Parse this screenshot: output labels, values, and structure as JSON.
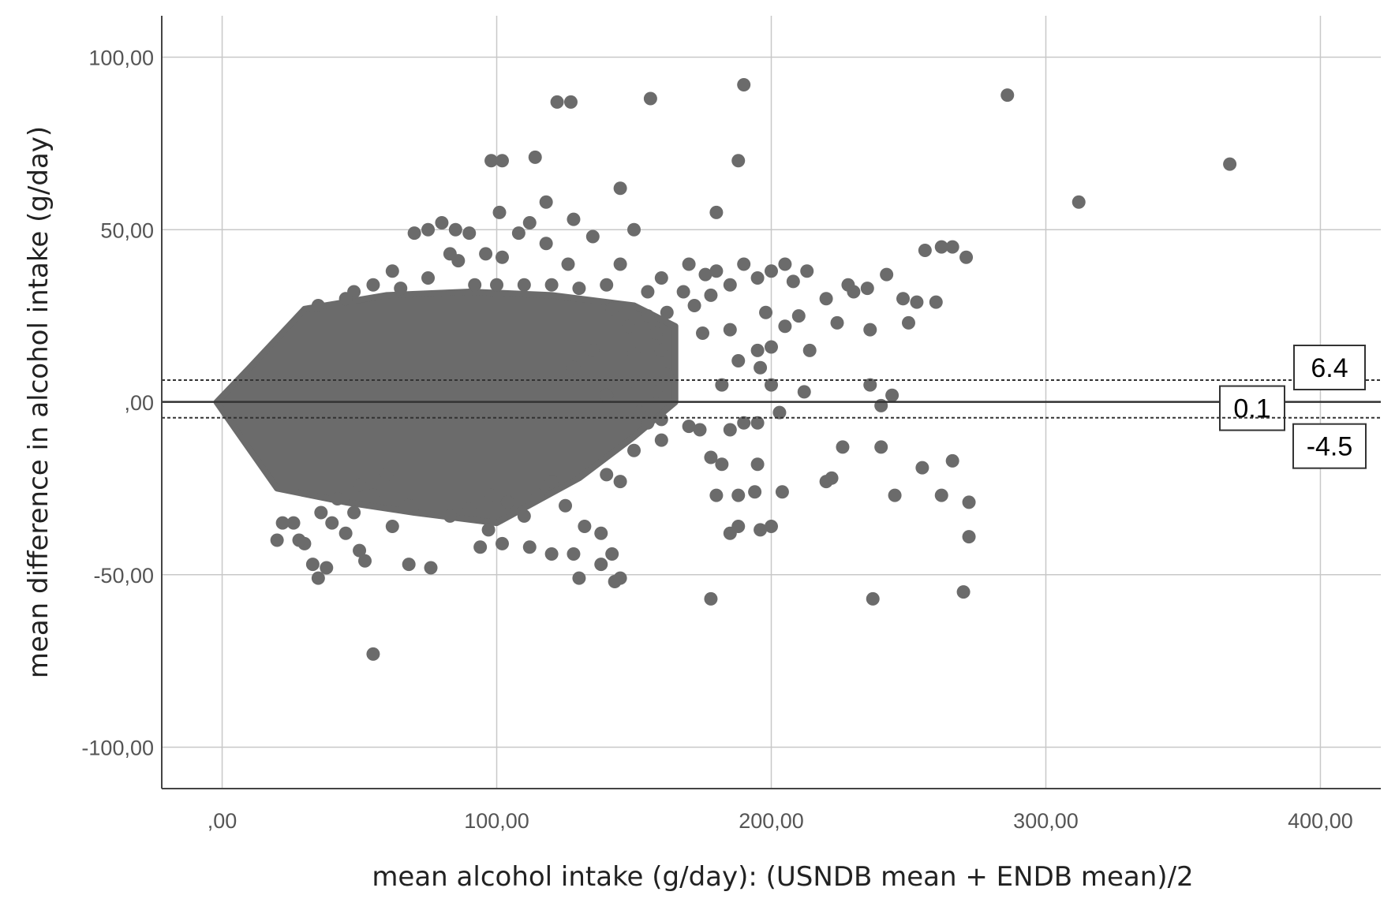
{
  "chart_data": {
    "type": "scatter",
    "title": "",
    "xlabel": "mean alcohol intake (g/day): (USNDB mean + ENDB mean)/2",
    "ylabel": "mean difference in alcohol intake (g/day)",
    "xlim": [
      -22,
      422
    ],
    "ylim": [
      -112,
      112
    ],
    "x_ticks": [
      0,
      100,
      200,
      300,
      400
    ],
    "x_tick_labels": [
      ",00",
      "100,00",
      "200,00",
      "300,00",
      "400,00"
    ],
    "y_ticks": [
      100,
      50,
      0,
      -50,
      -100
    ],
    "y_tick_labels": [
      "100,00",
      "50,00",
      ",00",
      "-50,00",
      "-100,00"
    ],
    "grid": true,
    "marker_color": "#6b6b6b",
    "grid_color": "#c8c8c8",
    "reference_lines": [
      {
        "label": "6.4",
        "value": 6.4,
        "style": "dashed"
      },
      {
        "label": "0.1",
        "value": 0.1,
        "style": "solid"
      },
      {
        "label": "-4.5",
        "value": -4.5,
        "style": "dashed"
      }
    ],
    "dense_region": {
      "description_points_upper": [
        [
          -2,
          0
        ],
        [
          10,
          10
        ],
        [
          30,
          27
        ],
        [
          60,
          31
        ],
        [
          90,
          32
        ],
        [
          120,
          31
        ],
        [
          150,
          28
        ],
        [
          165,
          22
        ],
        [
          165,
          10
        ]
      ],
      "description_points_lower": [
        [
          165,
          0
        ],
        [
          150,
          -10
        ],
        [
          130,
          -22
        ],
        [
          100,
          -35
        ],
        [
          70,
          -32
        ],
        [
          45,
          -29
        ],
        [
          20,
          -25
        ],
        [
          5,
          -8
        ],
        [
          -2,
          0
        ]
      ]
    },
    "points": [
      [
        190,
        92
      ],
      [
        286,
        89
      ],
      [
        156,
        88
      ],
      [
        122,
        87
      ],
      [
        127,
        87
      ],
      [
        367,
        69
      ],
      [
        188,
        70
      ],
      [
        98,
        70
      ],
      [
        102,
        70
      ],
      [
        114,
        71
      ],
      [
        312,
        58
      ],
      [
        145,
        62
      ],
      [
        118,
        58
      ],
      [
        180,
        55
      ],
      [
        128,
        53
      ],
      [
        101,
        55
      ],
      [
        70,
        49
      ],
      [
        75,
        50
      ],
      [
        80,
        52
      ],
      [
        85,
        50
      ],
      [
        90,
        49
      ],
      [
        108,
        49
      ],
      [
        112,
        52
      ],
      [
        135,
        48
      ],
      [
        150,
        50
      ],
      [
        83,
        43
      ],
      [
        86,
        41
      ],
      [
        96,
        43
      ],
      [
        102,
        42
      ],
      [
        118,
        46
      ],
      [
        126,
        40
      ],
      [
        145,
        40
      ],
      [
        160,
        36
      ],
      [
        170,
        40
      ],
      [
        176,
        37
      ],
      [
        180,
        38
      ],
      [
        185,
        34
      ],
      [
        190,
        40
      ],
      [
        195,
        36
      ],
      [
        200,
        38
      ],
      [
        205,
        40
      ],
      [
        213,
        38
      ],
      [
        208,
        35
      ],
      [
        220,
        30
      ],
      [
        230,
        32
      ],
      [
        235,
        33
      ],
      [
        242,
        37
      ],
      [
        248,
        30
      ],
      [
        253,
        29
      ],
      [
        260,
        29
      ],
      [
        256,
        44
      ],
      [
        262,
        45
      ],
      [
        266,
        45
      ],
      [
        271,
        42
      ],
      [
        250,
        23
      ],
      [
        244,
        2
      ],
      [
        240,
        -1
      ],
      [
        236,
        21
      ],
      [
        236,
        5
      ],
      [
        210,
        25
      ],
      [
        205,
        22
      ],
      [
        198,
        26
      ],
      [
        200,
        16
      ],
      [
        195,
        15
      ],
      [
        185,
        21
      ],
      [
        175,
        20
      ],
      [
        188,
        12
      ],
      [
        196,
        10
      ],
      [
        200,
        5
      ],
      [
        203,
        -3
      ],
      [
        212,
        3
      ],
      [
        214,
        15
      ],
      [
        224,
        23
      ],
      [
        228,
        34
      ],
      [
        182,
        5
      ],
      [
        174,
        -8
      ],
      [
        170,
        -7
      ],
      [
        160,
        -5
      ],
      [
        155,
        -6
      ],
      [
        152,
        -3
      ],
      [
        178,
        -16
      ],
      [
        182,
        -18
      ],
      [
        185,
        -8
      ],
      [
        190,
        -6
      ],
      [
        194,
        -26
      ],
      [
        188,
        -27
      ],
      [
        180,
        -27
      ],
      [
        196,
        -37
      ],
      [
        200,
        -36
      ],
      [
        204,
        -26
      ],
      [
        188,
        -36
      ],
      [
        185,
        -38
      ],
      [
        178,
        -57
      ],
      [
        237,
        -57
      ],
      [
        270,
        -55
      ],
      [
        272,
        -39
      ],
      [
        272,
        -29
      ],
      [
        255,
        -19
      ],
      [
        262,
        -27
      ],
      [
        266,
        -17
      ],
      [
        245,
        -27
      ],
      [
        240,
        -13
      ],
      [
        226,
        -13
      ],
      [
        220,
        -23
      ],
      [
        222,
        -22
      ],
      [
        195,
        -18
      ],
      [
        195,
        -6
      ],
      [
        143,
        -52
      ],
      [
        145,
        -51
      ],
      [
        130,
        -51
      ],
      [
        138,
        -47
      ],
      [
        142,
        -44
      ],
      [
        128,
        -44
      ],
      [
        120,
        -44
      ],
      [
        112,
        -42
      ],
      [
        102,
        -41
      ],
      [
        94,
        -42
      ],
      [
        97,
        -37
      ],
      [
        90,
        -31
      ],
      [
        83,
        -33
      ],
      [
        76,
        -48
      ],
      [
        68,
        -47
      ],
      [
        55,
        -73
      ],
      [
        52,
        -46
      ],
      [
        50,
        -43
      ],
      [
        45,
        -38
      ],
      [
        48,
        -32
      ],
      [
        40,
        -35
      ],
      [
        38,
        -48
      ],
      [
        35,
        -51
      ],
      [
        33,
        -47
      ],
      [
        30,
        -41
      ],
      [
        28,
        -40
      ],
      [
        26,
        -35
      ],
      [
        20,
        -40
      ],
      [
        22,
        -35
      ],
      [
        36,
        -32
      ],
      [
        42,
        -28
      ],
      [
        50,
        -24
      ],
      [
        55,
        -27
      ],
      [
        62,
        -36
      ],
      [
        68,
        -30
      ],
      [
        60,
        -21
      ],
      [
        140,
        -21
      ],
      [
        145,
        -23
      ],
      [
        150,
        -14
      ],
      [
        160,
        -11
      ],
      [
        120,
        -23
      ],
      [
        125,
        -30
      ],
      [
        132,
        -36
      ],
      [
        138,
        -38
      ],
      [
        98,
        -27
      ],
      [
        104,
        -29
      ],
      [
        110,
        -33
      ],
      [
        115,
        -27
      ],
      [
        150,
        14
      ],
      [
        158,
        20
      ],
      [
        162,
        26
      ],
      [
        168,
        32
      ],
      [
        155,
        32
      ],
      [
        140,
        34
      ],
      [
        130,
        33
      ],
      [
        120,
        34
      ],
      [
        110,
        34
      ],
      [
        100,
        34
      ],
      [
        75,
        36
      ],
      [
        62,
        38
      ],
      [
        55,
        34
      ],
      [
        48,
        32
      ],
      [
        45,
        30
      ],
      [
        65,
        33
      ],
      [
        92,
        34
      ],
      [
        35,
        28
      ],
      [
        172,
        28
      ],
      [
        178,
        31
      ],
      [
        142,
        27
      ],
      [
        148,
        22
      ],
      [
        155,
        25
      ],
      [
        160,
        15
      ],
      [
        162,
        8
      ],
      [
        158,
        3
      ],
      [
        150,
        6
      ],
      [
        140,
        2
      ],
      [
        128,
        10
      ],
      [
        135,
        15
      ]
    ]
  }
}
